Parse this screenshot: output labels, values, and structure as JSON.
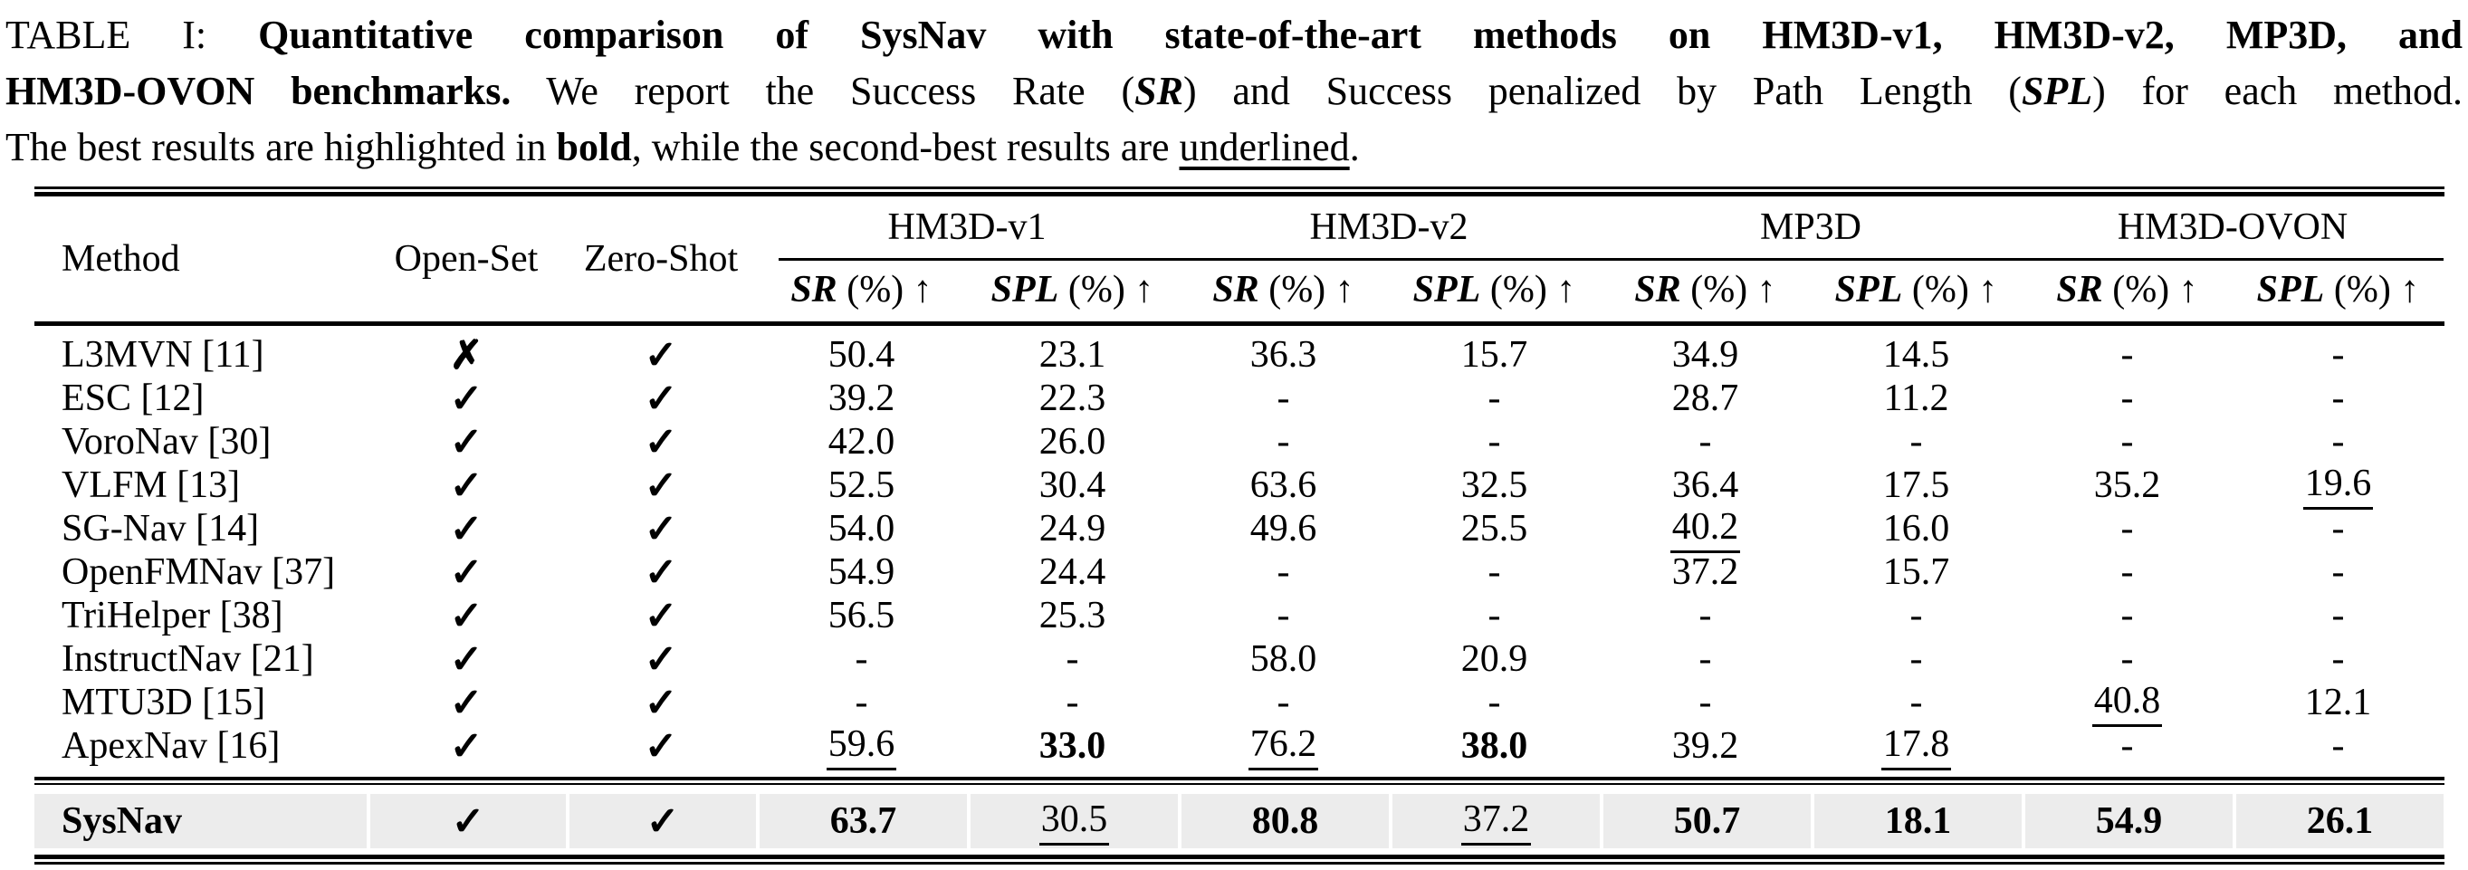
{
  "caption": {
    "label": "TABLE I: ",
    "bold_line1": "Quantitative comparison of SysNav with state-of-the-art methods on HM3D-v1, HM3D-v2, MP3D, and",
    "bold_line2": "HM3D-OVON benchmarks.",
    "t1": " We report the Success Rate (",
    "sr_abbr": "SR",
    "t2": ") and Success penalized by Path Length (",
    "spl_abbr": "SPL",
    "t3": ") for each method.",
    "t4": "The best results are highlighted in ",
    "bold_word": "bold",
    "t5": ", while the second-best results are ",
    "underlined_word": "underlined",
    "t6": "."
  },
  "table": {
    "header": {
      "method": "Method",
      "open_set": "Open-Set",
      "zero_shot": "Zero-Shot",
      "groups": [
        "HM3D-v1",
        "HM3D-v2",
        "MP3D",
        "HM3D-OVON"
      ],
      "sr_label": "SR",
      "spl_label": "SPL",
      "unit_arrow": " (%) ↑"
    },
    "rows": [
      {
        "method": "L3MVN [11]",
        "open_set": "✗",
        "zero_shot": "✓",
        "v": [
          "50.4",
          "23.1",
          "36.3",
          "15.7",
          "34.9",
          "14.5",
          "-",
          "-"
        ]
      },
      {
        "method": "ESC [12]",
        "open_set": "✓",
        "zero_shot": "✓",
        "v": [
          "39.2",
          "22.3",
          "-",
          "-",
          "28.7",
          "11.2",
          "-",
          "-"
        ]
      },
      {
        "method": "VoroNav [30]",
        "open_set": "✓",
        "zero_shot": "✓",
        "v": [
          "42.0",
          "26.0",
          "-",
          "-",
          "-",
          "-",
          "-",
          "-"
        ]
      },
      {
        "method": "VLFM [13]",
        "open_set": "✓",
        "zero_shot": "✓",
        "v": [
          "52.5",
          "30.4",
          "63.6",
          "32.5",
          "36.4",
          "17.5",
          "35.2",
          "19.6"
        ]
      },
      {
        "method": "SG-Nav [14]",
        "open_set": "✓",
        "zero_shot": "✓",
        "v": [
          "54.0",
          "24.9",
          "49.6",
          "25.5",
          "40.2",
          "16.0",
          "-",
          "-"
        ]
      },
      {
        "method": "OpenFMNav [37]",
        "open_set": "✓",
        "zero_shot": "✓",
        "v": [
          "54.9",
          "24.4",
          "-",
          "-",
          "37.2",
          "15.7",
          "-",
          "-"
        ]
      },
      {
        "method": "TriHelper [38]",
        "open_set": "✓",
        "zero_shot": "✓",
        "v": [
          "56.5",
          "25.3",
          "-",
          "-",
          "-",
          "-",
          "-",
          "-"
        ]
      },
      {
        "method": "InstructNav [21]",
        "open_set": "✓",
        "zero_shot": "✓",
        "v": [
          "-",
          "-",
          "58.0",
          "20.9",
          "-",
          "-",
          "-",
          "-"
        ]
      },
      {
        "method": "MTU3D [15]",
        "open_set": "✓",
        "zero_shot": "✓",
        "v": [
          "-",
          "-",
          "-",
          "-",
          "-",
          "-",
          "40.8",
          "12.1"
        ]
      },
      {
        "method": "ApexNav [16]",
        "open_set": "✓",
        "zero_shot": "✓",
        "v": [
          "59.6",
          "33.0",
          "76.2",
          "38.0",
          "39.2",
          "17.8",
          "-",
          "-"
        ]
      }
    ],
    "highlight_row": {
      "method": "SysNav",
      "open_set": "✓",
      "zero_shot": "✓",
      "v": [
        "63.7",
        "30.5",
        "80.8",
        "37.2",
        "50.7",
        "18.1",
        "54.9",
        "26.1"
      ],
      "row_color": "#ececec"
    }
  }
}
